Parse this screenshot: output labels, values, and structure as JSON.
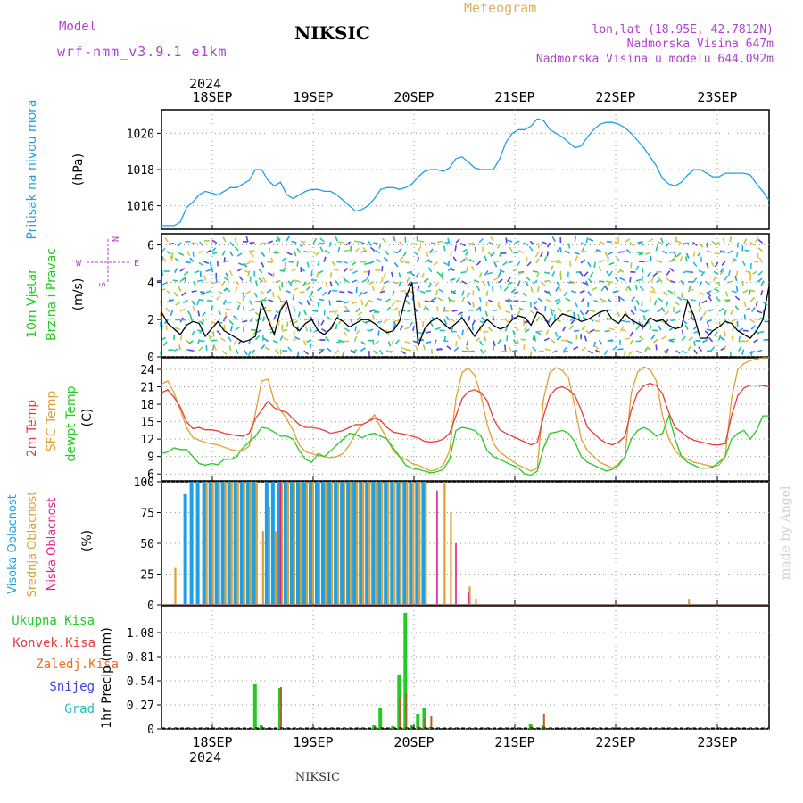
{
  "header": {
    "model_label": "Model",
    "model_name": "wrf-nmm_v3.9.1  e1km",
    "title": "NIKSIC",
    "meteogram": "Meteogram",
    "lonlat": "lon,lat (18.95E, 42.7812N)",
    "elevation": "Nadmorska Visina 647m",
    "model_elevation": "Nadmorska Visina u modelu 644.092m"
  },
  "footer": {
    "station": "NIKSIC",
    "credit": "made by Angel"
  },
  "colors": {
    "pressure": "#1ea0e6",
    "temp2m": "#e83c3c",
    "sfc": "#e0a030",
    "dewpt": "#22cc22",
    "high_cloud": "#1ea0e6",
    "mid_cloud": "#e0a030",
    "low_cloud": "#e0208a",
    "total_rain": "#22cc22",
    "conv_rain": "#e83c3c",
    "frozen_rain": "#e87020",
    "snow": "#4040e0",
    "hail": "#20c0c0",
    "purple": "#b040d0",
    "legend_title": "#e0b060"
  },
  "axes": {
    "top_year": "2024",
    "bottom_year": "2024",
    "days": [
      "18SEP",
      "19SEP",
      "20SEP",
      "21SEP",
      "22SEP",
      "23SEP"
    ]
  },
  "chart_data": [
    {
      "type": "line",
      "panel": "pressure",
      "ylabel": [
        "Pritisak na nivou mora",
        "(hPa)"
      ],
      "yticks": [
        "1020",
        "1018",
        "1016"
      ],
      "ylim": [
        1014.7,
        1021.3
      ],
      "x_hours_start": 0,
      "series": [
        {
          "name": "Pritisak na nivou mora",
          "values": [
            1014.9,
            1014.9,
            1014.9,
            1015.1,
            1015.9,
            1016.2,
            1016.6,
            1016.8,
            1016.7,
            1016.6,
            1016.8,
            1017.0,
            1017.0,
            1017.2,
            1017.4,
            1018.0,
            1018.0,
            1017.4,
            1017.1,
            1017.3,
            1016.6,
            1016.4,
            1016.6,
            1016.8,
            1016.9,
            1016.9,
            1016.8,
            1016.8,
            1016.6,
            1016.3,
            1016.0,
            1015.7,
            1015.8,
            1016.0,
            1016.4,
            1016.9,
            1017.0,
            1017.0,
            1016.9,
            1017.0,
            1017.2,
            1017.6,
            1017.9,
            1018.0,
            1018.0,
            1017.9,
            1018.1,
            1018.6,
            1018.7,
            1018.4,
            1018.1,
            1018.0,
            1018.0,
            1018.0,
            1018.6,
            1019.5,
            1020.0,
            1020.2,
            1020.2,
            1020.4,
            1020.8,
            1020.7,
            1020.2,
            1020.0,
            1019.8,
            1019.5,
            1019.2,
            1019.3,
            1019.8,
            1020.2,
            1020.5,
            1020.6,
            1020.6,
            1020.5,
            1020.3,
            1020.0,
            1019.6,
            1019.2,
            1018.7,
            1018.2,
            1017.5,
            1017.2,
            1017.1,
            1017.3,
            1017.7,
            1018.0,
            1018.0,
            1017.8,
            1017.6,
            1017.6,
            1017.8,
            1017.8,
            1017.8,
            1017.8,
            1017.7,
            1017.2,
            1016.8,
            1016.3
          ]
        }
      ]
    },
    {
      "type": "line",
      "panel": "wind",
      "ylabel": [
        "10m Vjetar",
        "Brzina i Pravac",
        "(m/s)"
      ],
      "compass": {
        "n": "N",
        "w": "W",
        "e": "E",
        "s": "S"
      },
      "yticks": [
        "6",
        "4",
        "2",
        "0"
      ],
      "ylim": [
        0,
        6.6
      ],
      "series": [
        {
          "name": "Brzina",
          "values": [
            2.4,
            1.8,
            1.5,
            1.2,
            1.7,
            1.9,
            1.8,
            1.1,
            1.5,
            1.9,
            1.4,
            1.2,
            1.0,
            0.8,
            0.9,
            1.1,
            2.9,
            2.0,
            1.2,
            2.5,
            3.0,
            1.7,
            1.4,
            1.8,
            2.0,
            1.4,
            1.2,
            1.5,
            2.1,
            1.9,
            1.6,
            1.8,
            2.0,
            2.0,
            1.8,
            1.5,
            1.3,
            1.4,
            1.9,
            3.2,
            4.0,
            0.6,
            1.5,
            1.9,
            2.1,
            1.8,
            1.5,
            1.8,
            2.1,
            1.6,
            1.1,
            1.6,
            2.0,
            1.7,
            1.5,
            1.6,
            2.0,
            2.2,
            2.1,
            1.7,
            2.4,
            2.2,
            1.6,
            2.0,
            2.3,
            2.2,
            2.1,
            1.9,
            2.0,
            2.2,
            2.4,
            2.5,
            2.0,
            1.8,
            2.3,
            2.0,
            1.8,
            1.6,
            2.1,
            1.9,
            2.0,
            1.7,
            1.5,
            1.6,
            3.0,
            2.2,
            1.0,
            1.0,
            1.4,
            1.6,
            1.9,
            1.8,
            1.4,
            1.2,
            1.0,
            1.4,
            2.0,
            3.8
          ]
        }
      ]
    },
    {
      "type": "line",
      "panel": "temperature",
      "ylabel": [
        "2m Temp",
        "SFC Temp",
        "dewpt Temp",
        "(C)"
      ],
      "yticks": [
        "24",
        "21",
        "18",
        "15",
        "12",
        "9",
        "6"
      ],
      "ylim": [
        4.8,
        26.0
      ],
      "series": [
        {
          "name": "2m Temp",
          "values": [
            20.0,
            20.5,
            19.2,
            17.5,
            15.0,
            13.8,
            14.0,
            13.6,
            13.6,
            13.4,
            13.0,
            12.8,
            12.6,
            12.5,
            13.0,
            15.5,
            17.0,
            18.5,
            17.4,
            16.9,
            16.6,
            15.5,
            14.5,
            14.0,
            14.0,
            13.8,
            13.5,
            13.0,
            13.2,
            13.5,
            14.0,
            14.5,
            14.5,
            15.0,
            15.6,
            15.2,
            14.0,
            13.2,
            13.0,
            12.8,
            12.5,
            12.2,
            11.6,
            11.5,
            11.6,
            12.0,
            13.0,
            16.0,
            19.0,
            20.2,
            20.5,
            20.0,
            18.6,
            15.5,
            13.6,
            13.0,
            12.5,
            12.0,
            11.5,
            11.0,
            11.4,
            16.0,
            19.5,
            20.7,
            21.0,
            20.5,
            19.5,
            17.0,
            14.0,
            13.0,
            12.0,
            11.3,
            11.0,
            11.5,
            12.5,
            17.0,
            20.0,
            21.2,
            21.6,
            21.2,
            19.8,
            16.5,
            14.0,
            13.2,
            12.3,
            11.8,
            11.5,
            11.3,
            11.0,
            11.0,
            11.2,
            16.0,
            19.5,
            20.8,
            21.3,
            21.3,
            21.2,
            21.0
          ]
        },
        {
          "name": "SFC Temp",
          "values": [
            21.5,
            22.0,
            20.0,
            17.0,
            14.0,
            12.3,
            11.8,
            11.4,
            11.2,
            11.0,
            10.6,
            10.2,
            10.0,
            10.0,
            10.8,
            16.5,
            22.0,
            22.3,
            18.5,
            17.0,
            15.5,
            13.5,
            11.0,
            9.8,
            9.5,
            9.2,
            9.0,
            8.8,
            9.0,
            9.5,
            11.0,
            13.0,
            14.5,
            15.0,
            16.2,
            14.0,
            12.0,
            10.0,
            9.0,
            8.5,
            7.8,
            7.5,
            7.0,
            6.5,
            6.8,
            7.5,
            10.0,
            19.0,
            23.5,
            24.2,
            23.0,
            19.5,
            14.5,
            11.2,
            9.8,
            9.0,
            8.2,
            7.5,
            7.0,
            6.5,
            7.0,
            19.0,
            23.5,
            24.3,
            23.8,
            22.5,
            17.5,
            12.0,
            10.0,
            9.0,
            8.0,
            7.5,
            7.0,
            7.8,
            9.0,
            20.0,
            23.5,
            24.4,
            24.0,
            22.0,
            16.0,
            12.0,
            10.0,
            9.0,
            8.5,
            8.0,
            7.8,
            7.5,
            7.3,
            7.5,
            9.0,
            19.0,
            24.0,
            25.0,
            25.5,
            25.8,
            26.0,
            26.0
          ]
        },
        {
          "name": "dewpt Temp",
          "values": [
            9.5,
            9.8,
            10.5,
            10.2,
            10.2,
            9.0,
            7.8,
            7.5,
            7.8,
            7.6,
            8.5,
            8.5,
            9.0,
            10.5,
            11.5,
            12.5,
            14.0,
            13.8,
            13.2,
            12.5,
            12.5,
            12.0,
            10.0,
            8.5,
            8.0,
            9.5,
            9.0,
            10.0,
            11.0,
            12.0,
            13.0,
            12.8,
            12.2,
            12.8,
            13.0,
            12.5,
            12.0,
            10.5,
            9.0,
            7.5,
            7.0,
            6.8,
            6.5,
            6.2,
            6.4,
            6.8,
            8.5,
            13.5,
            14.0,
            13.8,
            13.5,
            12.5,
            10.0,
            9.0,
            8.5,
            8.0,
            7.5,
            7.0,
            6.0,
            5.8,
            6.5,
            10.5,
            13.0,
            13.2,
            13.5,
            13.0,
            11.5,
            9.0,
            8.0,
            7.5,
            7.0,
            6.5,
            6.8,
            7.5,
            9.0,
            12.0,
            13.5,
            14.0,
            13.5,
            12.5,
            13.0,
            16.0,
            12.0,
            9.0,
            8.0,
            7.5,
            7.0,
            7.0,
            7.2,
            8.0,
            9.0,
            12.0,
            13.0,
            13.5,
            12.0,
            13.5,
            16.0,
            16.0
          ]
        }
      ]
    },
    {
      "type": "bar",
      "panel": "cloud",
      "ylabel": [
        "Visoka Oblacnost",
        "Srednja Oblacnost",
        "Niska Oblacnost",
        "(%)"
      ],
      "yticks": [
        "100",
        "75",
        "50",
        "25",
        "0"
      ],
      "ylim": [
        0,
        100
      ],
      "series": [
        {
          "name": "Visoka Oblacnost",
          "values": [
            0,
            0,
            0,
            0,
            90,
            100,
            100,
            100,
            100,
            100,
            100,
            100,
            100,
            100,
            100,
            100,
            0,
            100,
            100,
            100,
            100,
            100,
            100,
            100,
            100,
            100,
            100,
            100,
            100,
            100,
            100,
            100,
            100,
            100,
            100,
            100,
            100,
            100,
            100,
            100,
            100,
            100,
            100,
            0,
            0,
            0,
            0,
            0,
            0,
            0,
            0,
            0,
            0,
            0,
            0,
            0,
            0,
            0,
            0,
            0,
            0,
            0,
            0,
            0,
            0,
            0,
            0,
            0,
            0,
            0,
            0,
            0,
            0,
            0,
            0,
            0,
            0,
            0,
            0,
            0,
            0,
            0,
            0,
            0,
            0,
            0,
            0,
            0,
            0,
            0,
            0,
            0,
            0,
            0,
            0,
            0,
            0,
            0
          ]
        },
        {
          "name": "Srednja Oblacnost",
          "values": [
            0,
            0,
            30,
            0,
            0,
            0,
            0,
            100,
            100,
            100,
            100,
            100,
            100,
            100,
            100,
            100,
            60,
            80,
            60,
            100,
            100,
            100,
            100,
            100,
            100,
            100,
            100,
            100,
            100,
            100,
            100,
            100,
            100,
            100,
            100,
            100,
            100,
            100,
            100,
            100,
            100,
            100,
            100,
            0,
            0,
            100,
            75,
            0,
            0,
            15,
            5,
            0,
            0,
            0,
            0,
            0,
            0,
            0,
            0,
            0,
            0,
            0,
            0,
            0,
            0,
            0,
            0,
            0,
            0,
            0,
            0,
            0,
            0,
            0,
            0,
            0,
            0,
            0,
            0,
            0,
            0,
            0,
            0,
            0,
            5,
            0,
            0,
            0,
            0,
            0,
            0,
            0,
            0,
            0,
            0,
            0,
            0,
            0
          ]
        },
        {
          "name": "Niska Oblacnost",
          "values": [
            0,
            0,
            0,
            0,
            0,
            0,
            0,
            0,
            0,
            0,
            0,
            0,
            0,
            0,
            0,
            0,
            0,
            0,
            0,
            100,
            0,
            0,
            0,
            0,
            0,
            0,
            0,
            0,
            0,
            0,
            0,
            0,
            0,
            0,
            0,
            0,
            0,
            0,
            0,
            0,
            0,
            0,
            0,
            0,
            93,
            0,
            0,
            50,
            0,
            10,
            0,
            0,
            0,
            0,
            0,
            0,
            0,
            0,
            0,
            0,
            0,
            0,
            0,
            0,
            0,
            0,
            0,
            0,
            0,
            0,
            0,
            0,
            0,
            0,
            0,
            0,
            0,
            0,
            0,
            0,
            0,
            0,
            0,
            0,
            0,
            0,
            0,
            0,
            0,
            0,
            0,
            0,
            0,
            0,
            0,
            0,
            0,
            0
          ]
        }
      ]
    },
    {
      "type": "bar",
      "panel": "precip",
      "ylabel": [
        "1hr Precip (mm)"
      ],
      "legend": [
        "Ukupna Kisa",
        "Konvek.Kisa",
        "Zaledj.Kisa",
        "Snijeg",
        "Grad"
      ],
      "yticks": [
        "1.08",
        "0.81",
        "0.54",
        "0.27",
        "0"
      ],
      "ylim": [
        0,
        1.38
      ],
      "bars": [
        {
          "hour": 15,
          "total": 0.5,
          "conv": 0.02
        },
        {
          "hour": 16,
          "total": 0.04,
          "conv": 0.02
        },
        {
          "hour": 19,
          "total": 0.46,
          "conv": 0.47
        },
        {
          "hour": 34,
          "total": 0.04,
          "conv": 0.02
        },
        {
          "hour": 35,
          "total": 0.24,
          "conv": 0.02
        },
        {
          "hour": 37,
          "total": 0.03,
          "conv": 0.02
        },
        {
          "hour": 38,
          "total": 0.6,
          "conv": 0.35
        },
        {
          "hour": 39,
          "total": 1.3,
          "conv": 0.4
        },
        {
          "hour": 40,
          "total": 0.04,
          "conv": 0.02
        },
        {
          "hour": 41,
          "total": 0.17,
          "conv": 0.04
        },
        {
          "hour": 42,
          "total": 0.23,
          "conv": 0.12
        },
        {
          "hour": 43,
          "total": 0.02,
          "conv": 0.14
        },
        {
          "hour": 59,
          "total": 0.05,
          "conv": 0.03
        },
        {
          "hour": 61,
          "total": 0.04,
          "conv": 0.17
        }
      ]
    }
  ]
}
